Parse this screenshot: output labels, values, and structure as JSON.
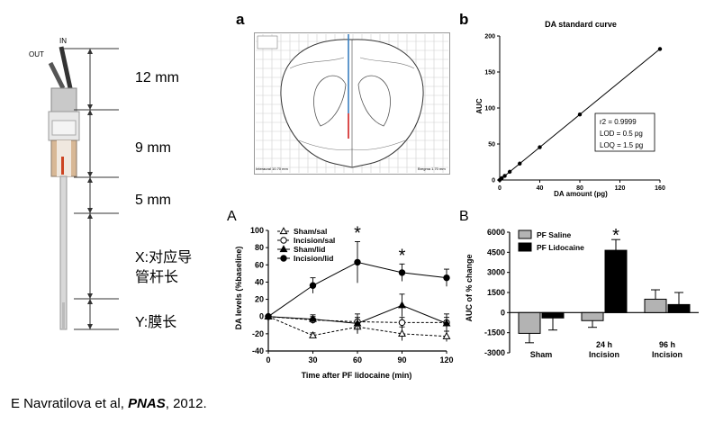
{
  "probe": {
    "out_label": "OUT",
    "in_label": "IN",
    "dims": [
      "12 mm",
      "9 mm",
      "5 mm",
      "X:对应导",
      "管杆长",
      "Y:膜长"
    ]
  },
  "panel_a": {
    "letter": "a",
    "interaural": "Interaural 10.70 mm",
    "bregma": "Bregma 1.70 mm"
  },
  "chart_b": {
    "letter": "b",
    "title": "DA standard curve",
    "ylabel": "AUC",
    "xlabel": "DA amount (pg)",
    "annotation": [
      "r2 = 0.9999",
      "LOD = 0.5 pg",
      "LOQ = 1.5 pg"
    ]
  },
  "chart_A": {
    "letter": "A",
    "ylabel": "DA levels (%baseline)",
    "xlabel": "Time after PF lidocaine (min)",
    "star": "*"
  },
  "chart_B": {
    "letter": "B",
    "ylabel": "AUC of % change",
    "star": "*"
  },
  "citation": {
    "author": "E Navratilova et al, ",
    "journal": "PNAS",
    "year": ", 2012."
  },
  "chart_data": [
    {
      "type": "scatter",
      "title": "DA standard curve",
      "xlabel": "DA amount (pg)",
      "ylabel": "AUC",
      "xlim": [
        0,
        160
      ],
      "ylim": [
        0,
        200
      ],
      "xticks": [
        0,
        40,
        80,
        120,
        160
      ],
      "yticks": [
        0,
        50,
        100,
        150,
        200
      ],
      "x": [
        0,
        2,
        5,
        10,
        20,
        40,
        80,
        160
      ],
      "y": [
        0,
        2.5,
        5.7,
        11.4,
        22.8,
        45.5,
        91,
        182
      ],
      "fit_line": true,
      "color": "#000000"
    },
    {
      "type": "line",
      "xlabel": "Time after PF lidocaine (min)",
      "ylabel": "DA levels (%baseline)",
      "xlim": [
        0,
        120
      ],
      "ylim": [
        -40,
        100
      ],
      "xticks": [
        0,
        30,
        60,
        90,
        120
      ],
      "yticks": [
        -40,
        -20,
        0,
        20,
        40,
        60,
        80,
        100
      ],
      "x": [
        0,
        30,
        60,
        90,
        120
      ],
      "series": [
        {
          "name": "Sham/sal",
          "marker": "triangle-open",
          "dashed": true,
          "values": [
            0,
            -22,
            -12,
            -20,
            -23
          ],
          "err": [
            0,
            3,
            8,
            8,
            6
          ]
        },
        {
          "name": "Incision/sal",
          "marker": "circle-open",
          "dashed": true,
          "values": [
            0,
            -4,
            -6,
            -7,
            -7
          ],
          "err": [
            0,
            4,
            5,
            6,
            6
          ]
        },
        {
          "name": "Sham/lid",
          "marker": "triangle-filled",
          "dashed": false,
          "values": [
            0,
            -3,
            -8,
            13,
            -8
          ],
          "err": [
            0,
            5,
            11,
            13,
            11
          ]
        },
        {
          "name": "Incision/lid",
          "marker": "circle-filled",
          "dashed": false,
          "values": [
            0,
            36,
            63,
            51,
            45
          ],
          "err": [
            0,
            9,
            24,
            10,
            10
          ]
        }
      ],
      "significant_at": [
        60,
        90
      ]
    },
    {
      "type": "bar",
      "ylabel": "AUC of % change",
      "ylim": [
        -3000,
        6000
      ],
      "yticks": [
        -3000,
        -1500,
        0,
        1500,
        3000,
        4500,
        6000
      ],
      "categories": [
        "Sham",
        "24 h Incision",
        "96 h Incision"
      ],
      "series": [
        {
          "name": "PF Saline",
          "color": "#b3b3b3",
          "values": [
            -1550,
            -600,
            1000
          ],
          "err": [
            700,
            500,
            700
          ]
        },
        {
          "name": "PF Lidocaine",
          "color": "#000000",
          "values": [
            -400,
            4650,
            600
          ],
          "err": [
            900,
            800,
            900
          ]
        }
      ],
      "significant": [
        "24 h Incision"
      ]
    }
  ]
}
